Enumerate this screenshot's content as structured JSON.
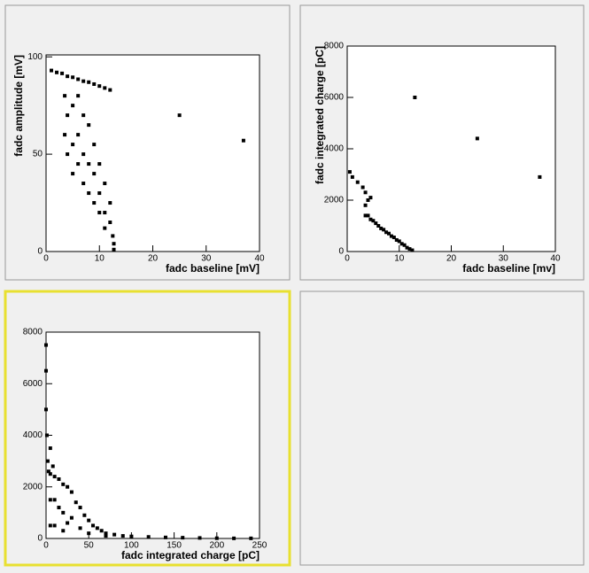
{
  "chart_data": [
    {
      "type": "scatter",
      "xlabel": "fadc baseline [mV]",
      "ylabel": "fadc amplitude [mV]",
      "xlim": [
        0,
        40
      ],
      "ylim": [
        0,
        101
      ],
      "xticks": [
        0,
        10,
        20,
        30,
        40
      ],
      "yticks": [
        0,
        50,
        100
      ],
      "color": "#000000",
      "x": [
        1,
        2,
        3,
        4,
        5,
        6,
        7,
        8,
        9,
        10,
        11,
        12,
        3.5,
        3.5,
        4,
        4,
        5,
        5,
        5,
        6,
        6,
        6,
        7,
        7,
        7,
        8,
        8,
        8,
        9,
        9,
        9,
        10,
        10,
        10,
        11,
        11,
        11,
        12,
        12,
        12.5,
        12.7,
        12.7,
        25,
        37
      ],
      "values": [
        93,
        92,
        91.5,
        90,
        89.5,
        88.5,
        87.5,
        87,
        86,
        85,
        84,
        83,
        80,
        60,
        70,
        50,
        75,
        55,
        40,
        80,
        60,
        45,
        70,
        50,
        35,
        65,
        45,
        30,
        55,
        40,
        25,
        45,
        30,
        20,
        35,
        20,
        12,
        25,
        15,
        8,
        4,
        1,
        70,
        57
      ]
    },
    {
      "type": "scatter",
      "xlabel": "fadc baseline [mv]",
      "ylabel": "fadc integrated charge [pC]",
      "xlim": [
        0,
        40
      ],
      "ylim": [
        0,
        8000
      ],
      "xticks": [
        0,
        10,
        20,
        30,
        40
      ],
      "yticks": [
        0,
        2000,
        4000,
        6000,
        8000
      ],
      "color": "#000000",
      "x": [
        0.5,
        1,
        2,
        3,
        3.5,
        3.5,
        3.5,
        4,
        5,
        6,
        7,
        8,
        9,
        10,
        11,
        12,
        12.5,
        4.5,
        5.5,
        6.5,
        7.5,
        8.5,
        9.5,
        10.5,
        11.5,
        4,
        4.5,
        13,
        25,
        37
      ],
      "values": [
        3100,
        2900,
        2700,
        2500,
        2300,
        1800,
        1400,
        1400,
        1200,
        1000,
        850,
        700,
        550,
        400,
        250,
        100,
        50,
        1250,
        1100,
        900,
        750,
        600,
        450,
        300,
        150,
        2000,
        2100,
        6000,
        4400,
        2900
      ]
    },
    {
      "type": "scatter",
      "xlabel": "fadc integrated charge [pC]",
      "ylabel": null,
      "xlim": [
        0,
        250
      ],
      "ylim": [
        0,
        8000
      ],
      "xticks": [
        0,
        50,
        100,
        150,
        200,
        250
      ],
      "yticks": [
        0,
        2000,
        4000,
        6000,
        8000
      ],
      "color": "#000000",
      "x": [
        0,
        0,
        0,
        1,
        2,
        5,
        5,
        5,
        5,
        10,
        10,
        10,
        15,
        15,
        20,
        20,
        20,
        25,
        30,
        30,
        35,
        40,
        40,
        45,
        50,
        55,
        60,
        65,
        70,
        80,
        90,
        100,
        120,
        140,
        160,
        180,
        200,
        220,
        240,
        3,
        8,
        25,
        50,
        70
      ],
      "values": [
        7500,
        6500,
        5000,
        4000,
        3000,
        3500,
        2500,
        1500,
        500,
        2400,
        1500,
        500,
        2300,
        1200,
        2100,
        1000,
        300,
        2000,
        1800,
        800,
        1400,
        1200,
        400,
        900,
        700,
        500,
        400,
        300,
        200,
        150,
        100,
        80,
        60,
        40,
        30,
        20,
        10,
        5,
        5,
        2600,
        2800,
        600,
        200,
        100
      ]
    }
  ]
}
